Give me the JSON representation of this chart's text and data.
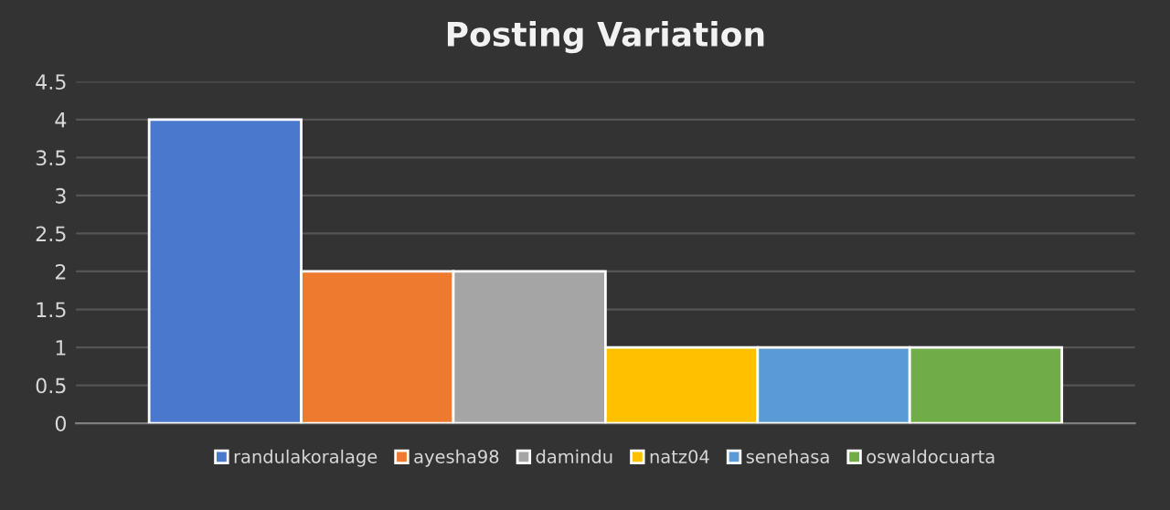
{
  "chart_data": {
    "type": "bar",
    "title": "Posting Variation",
    "categories": [
      null
    ],
    "series": [
      {
        "name": "randulakoralage",
        "color": "#4a78cc",
        "values": [
          4
        ]
      },
      {
        "name": "ayesha98",
        "color": "#ee7a30",
        "values": [
          2
        ]
      },
      {
        "name": "damindu",
        "color": "#a5a5a5",
        "values": [
          2
        ]
      },
      {
        "name": "natz04",
        "color": "#ffc000",
        "values": [
          1
        ]
      },
      {
        "name": "senehasa",
        "color": "#5b9bd5",
        "values": [
          1
        ]
      },
      {
        "name": "oswaldocuarta",
        "color": "#70ad47",
        "values": [
          1
        ]
      }
    ],
    "ylim": [
      0,
      4.5
    ],
    "yticks": [
      0,
      0.5,
      1,
      1.5,
      2,
      2.5,
      3,
      3.5,
      4,
      4.5
    ],
    "grid": "y",
    "legend": "bottom"
  }
}
